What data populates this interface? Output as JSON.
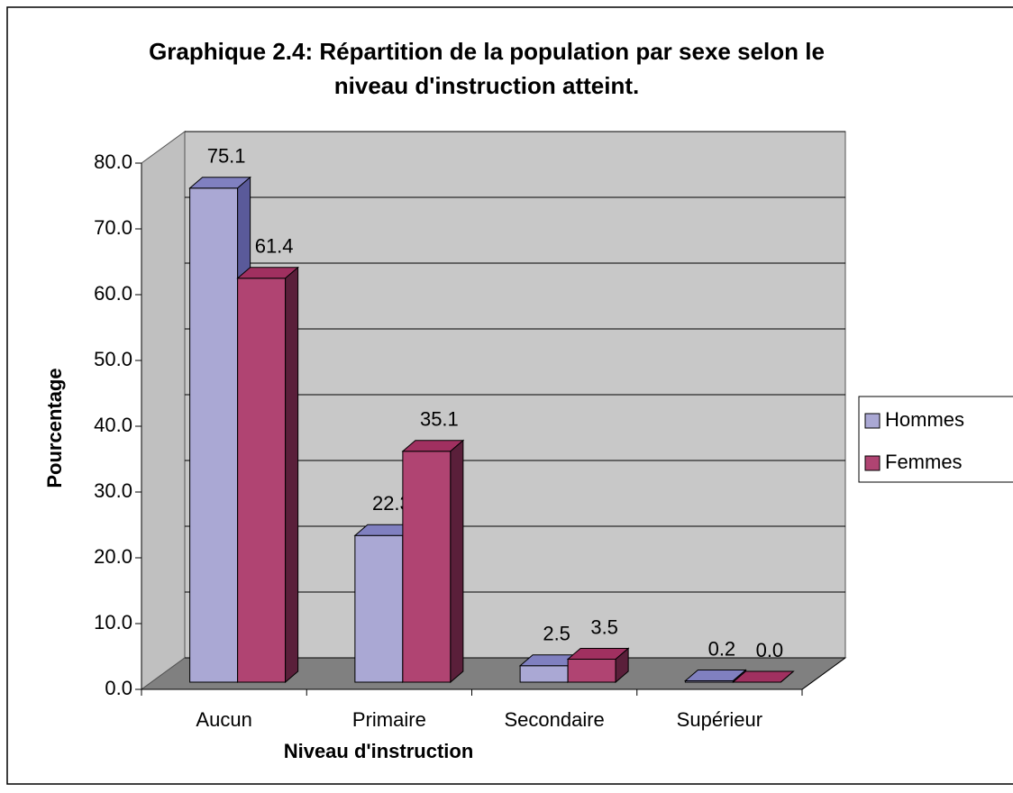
{
  "chart_data": {
    "type": "bar3d",
    "title": "Graphique 2.4: Répartition de la population par sexe selon le niveau d'instruction atteint.",
    "categories": [
      "Aucun",
      "Primaire",
      "Secondaire",
      "Supérieur"
    ],
    "series": [
      {
        "name": "Hommes",
        "color": "#aaa8d4",
        "values": [
          75.1,
          22.3,
          2.5,
          0.2
        ],
        "value_labels": [
          "75.1",
          "22.3",
          "2.5",
          "0.2"
        ]
      },
      {
        "name": "Femmes",
        "color": "#b04472",
        "values": [
          61.4,
          35.1,
          3.5,
          0.0
        ],
        "value_labels": [
          "61.4",
          "35.1",
          "3.5",
          "0.0"
        ]
      }
    ],
    "ylim": [
      0,
      80
    ],
    "yticks": [
      {
        "value": 0,
        "label": "0.0"
      },
      {
        "value": 10,
        "label": "10.0"
      },
      {
        "value": 20,
        "label": "20.0"
      },
      {
        "value": 30,
        "label": "30.0"
      },
      {
        "value": 40,
        "label": "40.0"
      },
      {
        "value": 50,
        "label": "50.0"
      },
      {
        "value": 60,
        "label": "60.0"
      },
      {
        "value": 70,
        "label": "70.0"
      },
      {
        "value": 80,
        "label": "80.0"
      }
    ],
    "xlabel": "Niveau d'instruction",
    "ylabel": "Pourcentage",
    "grid": true,
    "legend": "right"
  }
}
